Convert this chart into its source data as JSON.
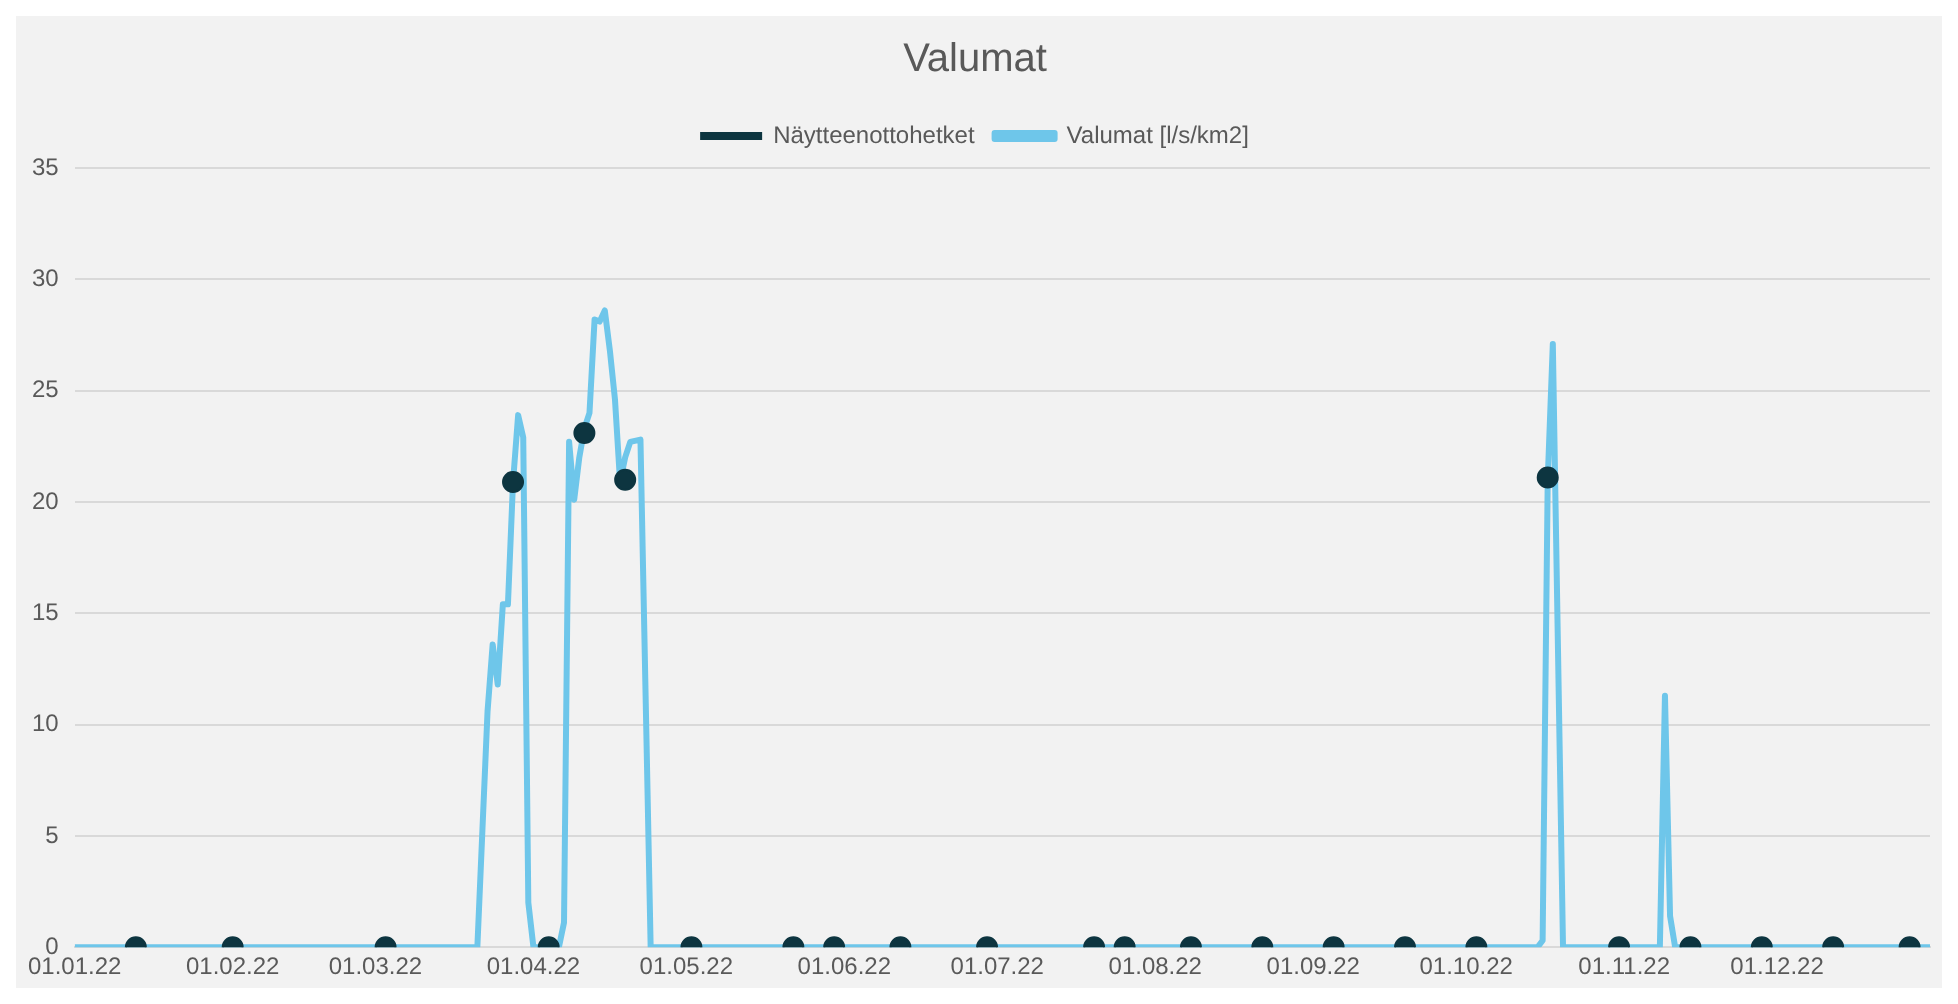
{
  "chart_data": {
    "type": "line",
    "title": "Valumat",
    "legend": "top",
    "grid": "y",
    "xlim": [
      "2022-01-01",
      "2022-12-31"
    ],
    "xticks": [
      {
        "value": "2022-01-01",
        "label": "01.01.22"
      },
      {
        "value": "2022-02-01",
        "label": "01.02.22"
      },
      {
        "value": "2022-03-01",
        "label": "01.03.22"
      },
      {
        "value": "2022-04-01",
        "label": "01.04.22"
      },
      {
        "value": "2022-05-01",
        "label": "01.05.22"
      },
      {
        "value": "2022-06-01",
        "label": "01.06.22"
      },
      {
        "value": "2022-07-01",
        "label": "01.07.22"
      },
      {
        "value": "2022-08-01",
        "label": "01.08.22"
      },
      {
        "value": "2022-09-01",
        "label": "01.09.22"
      },
      {
        "value": "2022-10-01",
        "label": "01.10.22"
      },
      {
        "value": "2022-11-01",
        "label": "01.11.22"
      },
      {
        "value": "2022-12-01",
        "label": "01.12.22"
      }
    ],
    "ylim": [
      0,
      35
    ],
    "yticks": [
      0,
      5,
      10,
      15,
      20,
      25,
      30,
      35
    ],
    "series": [
      {
        "name": "Valumat [l/s/km2]",
        "type": "line",
        "color": "#6ec6ea",
        "marker": "none",
        "x": [
          "2022-01-01",
          "2022-03-21",
          "2022-03-22",
          "2022-03-23",
          "2022-03-24",
          "2022-03-25",
          "2022-03-26",
          "2022-03-27",
          "2022-03-28",
          "2022-03-29",
          "2022-03-30",
          "2022-03-31",
          "2022-04-01",
          "2022-04-06",
          "2022-04-07",
          "2022-04-08",
          "2022-04-09",
          "2022-04-10",
          "2022-04-11",
          "2022-04-12",
          "2022-04-13",
          "2022-04-14",
          "2022-04-15",
          "2022-04-16",
          "2022-04-17",
          "2022-04-18",
          "2022-04-19",
          "2022-04-20",
          "2022-04-22",
          "2022-04-24",
          "2022-10-15",
          "2022-10-16",
          "2022-10-17",
          "2022-10-18",
          "2022-10-20",
          "2022-11-08",
          "2022-11-09",
          "2022-11-10",
          "2022-11-11",
          "2022-12-31"
        ],
        "values": [
          0,
          0,
          5.3,
          10.6,
          13.6,
          11.8,
          15.4,
          15.4,
          20.9,
          23.9,
          22.9,
          2.0,
          0,
          0,
          1.1,
          22.7,
          20.1,
          22.0,
          23.3,
          24.0,
          28.2,
          28.1,
          28.6,
          26.8,
          24.6,
          20.9,
          22.0,
          22.7,
          22.8,
          0,
          0,
          0.3,
          21.0,
          27.1,
          0,
          0,
          11.3,
          1.4,
          0,
          0
        ]
      },
      {
        "name": "Näytteenottohetket",
        "type": "scatter",
        "color": "#0d3540",
        "marker": "circle",
        "x": [
          "2022-01-13",
          "2022-02-01",
          "2022-03-03",
          "2022-03-28",
          "2022-04-04",
          "2022-04-11",
          "2022-04-19",
          "2022-05-02",
          "2022-05-22",
          "2022-05-30",
          "2022-06-12",
          "2022-06-29",
          "2022-07-20",
          "2022-07-26",
          "2022-08-08",
          "2022-08-22",
          "2022-09-05",
          "2022-09-19",
          "2022-10-03",
          "2022-10-17",
          "2022-10-31",
          "2022-11-14",
          "2022-11-28",
          "2022-12-12",
          "2022-12-27"
        ],
        "values": [
          0,
          0,
          0,
          20.9,
          0,
          23.1,
          21.0,
          0,
          0,
          0,
          0,
          0,
          0,
          0,
          0,
          0,
          0,
          0,
          0,
          21.1,
          0,
          0,
          0,
          0,
          0
        ]
      }
    ]
  }
}
